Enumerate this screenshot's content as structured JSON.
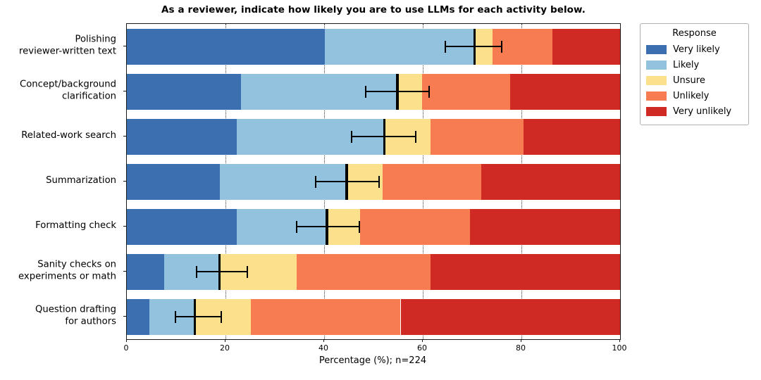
{
  "chart_data": {
    "type": "bar",
    "orientation": "horizontal",
    "stacked": true,
    "title": "As a reviewer, indicate how likely you are to use LLMs for each activity below.",
    "xlabel": "Percentage (%); n=224",
    "xlim": [
      0,
      100
    ],
    "xticks": [
      0,
      20,
      40,
      60,
      80,
      100
    ],
    "gridlines": [
      20,
      40,
      60,
      80
    ],
    "grid_style": "dotted",
    "legend_title": "Response",
    "legend_position": "upper-right-outside",
    "series": [
      {
        "name": "Very likely",
        "color": "#3c6fb0"
      },
      {
        "name": "Likely",
        "color": "#93c2de"
      },
      {
        "name": "Unsure",
        "color": "#fce08c"
      },
      {
        "name": "Unlikely",
        "color": "#f87c51"
      },
      {
        "name": "Very unlikely",
        "color": "#d02a25"
      }
    ],
    "rows": [
      {
        "label": "Polishing reviewer-written text",
        "label_lines": [
          "Polishing",
          "reviewer-written text"
        ],
        "values": [
          40.2,
          30.4,
          3.6,
          12.1,
          13.7
        ],
        "error": {
          "center": 70.5,
          "low": 64.6,
          "high": 76.0
        }
      },
      {
        "label": "Concept/background clarification",
        "label_lines": [
          "Concept/background",
          "clarification"
        ],
        "values": [
          23.2,
          31.7,
          4.9,
          17.9,
          22.3
        ],
        "error": {
          "center": 54.9,
          "low": 48.4,
          "high": 61.3
        }
      },
      {
        "label": "Related-work search",
        "label_lines": [
          "Related-work search"
        ],
        "values": [
          22.3,
          29.9,
          9.4,
          18.8,
          19.6
        ],
        "error": {
          "center": 52.2,
          "low": 45.6,
          "high": 58.6
        }
      },
      {
        "label": "Summarization",
        "label_lines": [
          "Summarization"
        ],
        "values": [
          18.8,
          25.9,
          7.1,
          20.1,
          28.1
        ],
        "error": {
          "center": 44.6,
          "low": 38.3,
          "high": 51.2
        }
      },
      {
        "label": "Formatting check",
        "label_lines": [
          "Formatting check"
        ],
        "values": [
          22.3,
          18.3,
          6.7,
          22.3,
          30.4
        ],
        "error": {
          "center": 40.6,
          "low": 34.4,
          "high": 47.2
        }
      },
      {
        "label": "Sanity checks on experiments or math",
        "label_lines": [
          "Sanity checks on",
          "experiments or math"
        ],
        "values": [
          7.6,
          11.2,
          15.6,
          27.2,
          38.4
        ],
        "error": {
          "center": 18.8,
          "low": 14.2,
          "high": 24.4
        }
      },
      {
        "label": "Question drafting for authors",
        "label_lines": [
          "Question drafting",
          "for authors"
        ],
        "values": [
          4.5,
          9.4,
          11.2,
          30.4,
          44.5
        ],
        "error": {
          "center": 13.8,
          "low": 9.9,
          "high": 19.1
        }
      }
    ]
  }
}
